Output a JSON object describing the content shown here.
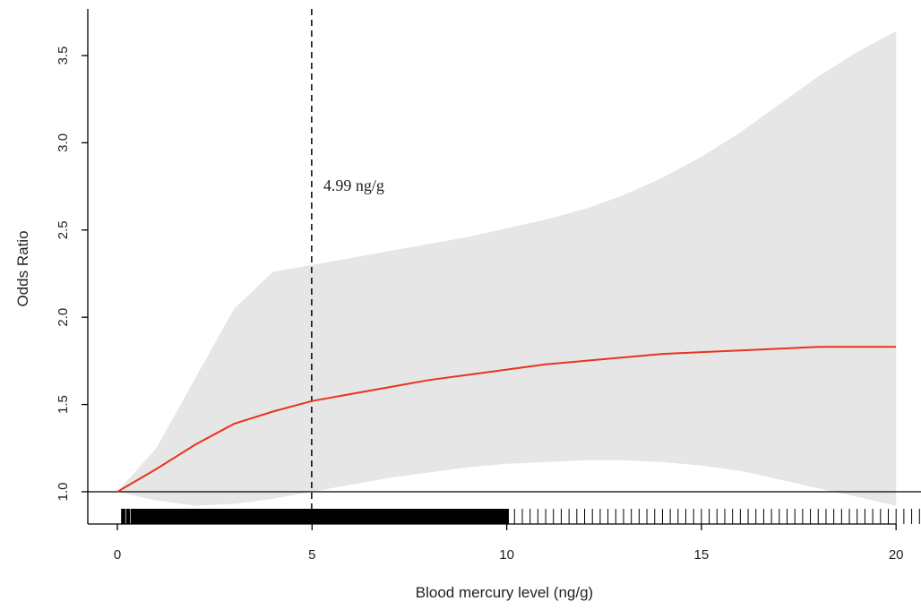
{
  "chart_data": {
    "type": "line",
    "x_label": "Blood mercury level (ng/g)",
    "y_label": "Odds Ratio",
    "x": [
      0,
      1,
      2,
      3,
      4,
      5,
      6,
      7,
      8,
      9,
      10,
      11,
      12,
      13,
      14,
      15,
      16,
      17,
      18,
      19,
      20
    ],
    "values": [
      1.0,
      1.13,
      1.27,
      1.39,
      1.46,
      1.52,
      1.56,
      1.6,
      1.64,
      1.67,
      1.7,
      1.73,
      1.75,
      1.77,
      1.79,
      1.8,
      1.81,
      1.82,
      1.83,
      1.83,
      1.83
    ],
    "color": "#e8341c",
    "ci_upper": [
      1.0,
      1.25,
      1.65,
      2.05,
      2.26,
      2.3,
      2.34,
      2.38,
      2.42,
      2.46,
      2.51,
      2.56,
      2.62,
      2.7,
      2.8,
      2.92,
      3.06,
      3.22,
      3.38,
      3.52,
      3.64
    ],
    "ci_lower": [
      1.0,
      0.95,
      0.92,
      0.93,
      0.96,
      1.0,
      1.04,
      1.08,
      1.11,
      1.14,
      1.16,
      1.17,
      1.18,
      1.18,
      1.17,
      1.15,
      1.12,
      1.07,
      1.02,
      0.97,
      0.92
    ],
    "ci_color": "#e6e6e6",
    "reference_line": 1,
    "vline": {
      "value": 4.99,
      "label": "4.99 ng/g"
    },
    "rug": [
      0.15,
      0.25,
      0.3,
      0.4,
      0.5,
      0.6,
      0.7,
      0.8,
      0.9,
      1.0,
      1.1,
      1.2,
      1.3,
      1.4,
      1.5,
      1.6,
      1.7,
      1.8,
      1.9,
      2.0,
      2.1,
      2.2,
      2.3,
      2.4,
      2.5,
      2.6,
      2.7,
      2.8,
      2.9,
      3.0,
      3.1,
      3.2,
      3.3,
      3.4,
      3.5,
      3.6,
      3.7,
      3.8,
      3.9,
      4.0,
      4.1,
      4.2,
      4.3,
      4.4,
      4.5,
      4.6,
      4.7,
      4.8,
      4.9,
      5.0,
      5.1,
      5.2,
      5.3,
      5.4,
      5.5,
      5.6,
      5.7,
      5.8,
      5.9,
      6.0,
      6.1,
      6.2,
      6.3,
      6.4,
      6.5,
      6.6,
      6.7,
      6.8,
      6.9,
      7.0,
      7.1,
      7.2,
      7.3,
      7.4,
      7.5,
      7.6,
      7.7,
      7.8,
      7.9,
      8.0,
      8.1,
      8.2,
      8.3,
      8.4,
      8.5,
      8.6,
      8.7,
      8.8,
      8.9,
      9.0,
      9.1,
      9.2,
      9.3,
      9.4,
      9.5,
      9.6,
      9.7,
      9.8,
      9.9,
      10.0,
      10.2,
      10.4,
      10.6,
      10.8,
      11.0,
      11.2,
      11.4,
      11.6,
      11.8,
      12.0,
      12.2,
      12.4,
      12.6,
      12.8,
      13.0,
      13.2,
      13.4,
      13.6,
      13.8,
      14.0,
      14.2,
      14.4,
      14.6,
      14.8,
      15.0,
      15.2,
      15.4,
      15.6,
      15.8,
      16.0,
      16.2,
      16.4,
      16.6,
      16.8,
      17.0,
      17.2,
      17.4,
      17.6,
      17.8,
      18.0,
      18.2,
      18.4,
      18.6,
      18.8,
      19.0,
      19.2,
      19.4,
      19.6,
      19.8,
      20.0,
      20.2,
      20.4,
      20.6
    ],
    "xlim": [
      -0.76,
      20.64
    ],
    "ylim": [
      0.815,
      3.767
    ],
    "xticks": [
      0,
      5,
      10,
      15,
      20
    ],
    "yticks": [
      {
        "value": 1,
        "label": "1.0"
      },
      1.5,
      {
        "value": 2,
        "label": "2.0"
      },
      2.5,
      {
        "value": 3,
        "label": "3.0"
      },
      3.5
    ]
  }
}
